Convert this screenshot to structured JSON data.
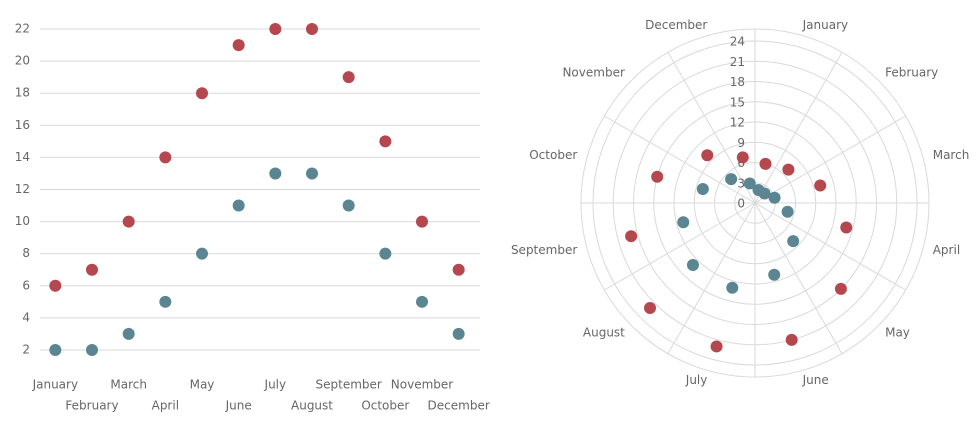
{
  "chart_data": [
    {
      "type": "scatter",
      "categories": [
        "January",
        "February",
        "March",
        "April",
        "May",
        "June",
        "July",
        "August",
        "September",
        "October",
        "November",
        "December"
      ],
      "series": [
        {
          "color": "#b5474f",
          "values": [
            6,
            7,
            10,
            14,
            18,
            21,
            22,
            22,
            19,
            15,
            10,
            7
          ]
        },
        {
          "color": "#5b8591",
          "values": [
            2,
            2,
            3,
            5,
            8,
            11,
            13,
            13,
            11,
            8,
            5,
            3
          ]
        }
      ],
      "ylim": [
        1,
        23
      ],
      "yticks": [
        2,
        4,
        6,
        8,
        10,
        12,
        14,
        16,
        18,
        20,
        22
      ],
      "grid": true
    },
    {
      "type": "polar",
      "categories": [
        "January",
        "February",
        "March",
        "April",
        "May",
        "June",
        "July",
        "August",
        "September",
        "October",
        "November",
        "December"
      ],
      "series": [
        {
          "color": "#b5474f",
          "values": [
            6,
            7,
            10,
            14,
            18,
            21,
            22,
            22,
            19,
            15,
            10,
            7
          ]
        },
        {
          "color": "#5b8591",
          "values": [
            2,
            2,
            3,
            5,
            8,
            11,
            13,
            13,
            11,
            8,
            5,
            3
          ]
        }
      ],
      "rlim": [
        0,
        24
      ],
      "rticks": [
        0,
        3,
        6,
        9,
        12,
        15,
        18,
        21,
        24
      ],
      "grid": true
    }
  ]
}
